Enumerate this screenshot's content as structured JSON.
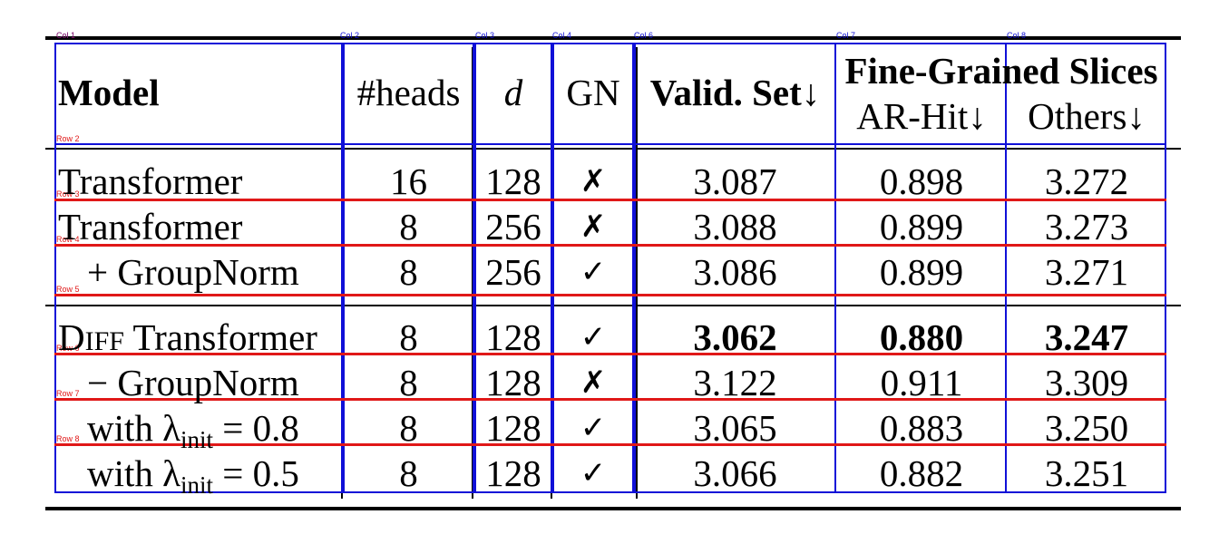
{
  "overlay": {
    "col_labels": [
      "Col 1",
      "Col 2",
      "Col 3",
      "Col 4",
      "Col 6",
      "Col 7",
      "Col 8"
    ],
    "row_labels": [
      "Row 2",
      "Row 3",
      "Row 4",
      "Row 5",
      "Row 6",
      "Row 7",
      "Row 8"
    ]
  },
  "header": {
    "model": "Model",
    "heads": "#heads",
    "d": "d",
    "gn": "GN",
    "valid": "Valid. Set↓",
    "fine_grained": "Fine-Grained Slices",
    "ar_hit": "AR-Hit↓",
    "others": "Others↓"
  },
  "rows": [
    {
      "model": "Transformer",
      "heads": "16",
      "d": "128",
      "gn": "✗",
      "valid": "3.087",
      "ar_hit": "0.898",
      "others": "3.272"
    },
    {
      "model": "Transformer",
      "heads": "8",
      "d": "256",
      "gn": "✗",
      "valid": "3.088",
      "ar_hit": "0.899",
      "others": "3.273"
    },
    {
      "model": "+ GroupNorm",
      "heads": "8",
      "d": "256",
      "gn": "✓",
      "valid": "3.086",
      "ar_hit": "0.899",
      "others": "3.271"
    },
    {
      "model_prefix": "D",
      "model_sc": "IFF",
      "model_rest": " Transformer",
      "heads": "8",
      "d": "128",
      "gn": "✓",
      "valid": "3.062",
      "ar_hit": "0.880",
      "others": "3.247"
    },
    {
      "model": "− GroupNorm",
      "heads": "8",
      "d": "128",
      "gn": "✗",
      "valid": "3.122",
      "ar_hit": "0.911",
      "others": "3.309"
    },
    {
      "model_with": "with λ",
      "model_sub": "init",
      "model_eq": " = 0.8",
      "heads": "8",
      "d": "128",
      "gn": "✓",
      "valid": "3.065",
      "ar_hit": "0.883",
      "others": "3.250"
    },
    {
      "model_with": "with λ",
      "model_sub": "init",
      "model_eq": " = 0.5",
      "heads": "8",
      "d": "128",
      "gn": "✓",
      "valid": "3.066",
      "ar_hit": "0.882",
      "others": "3.251"
    }
  ]
}
